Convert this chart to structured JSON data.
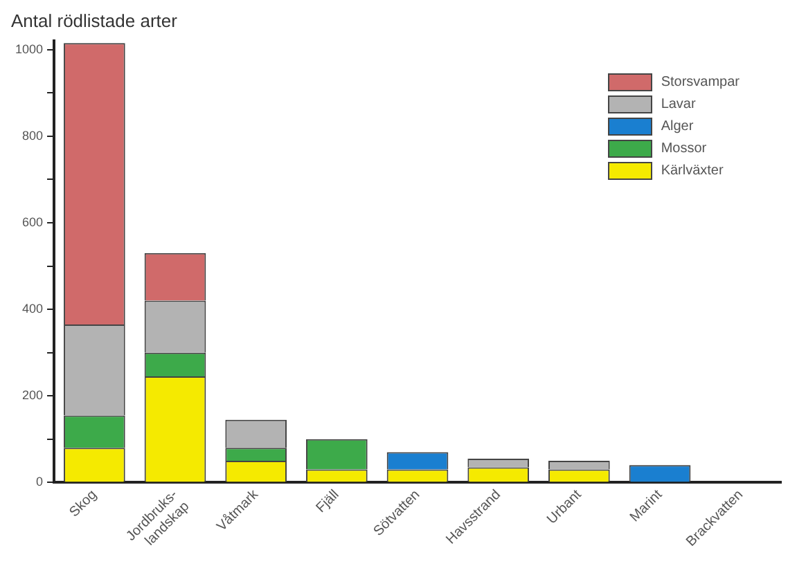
{
  "chart_data": {
    "type": "bar",
    "title": "Antal rödlistade arter",
    "stacked": true,
    "categories": [
      "Skog",
      "Jordbruks-landskap",
      "Våtmark",
      "Fjäll",
      "Sötvatten",
      "Havsstrand",
      "Urbant",
      "Marint",
      "Brackvatten"
    ],
    "series": [
      {
        "name": "Kärlväxter",
        "color": "#f5ea00",
        "values": [
          80,
          245,
          50,
          30,
          30,
          35,
          30,
          null,
          null
        ]
      },
      {
        "name": "Mossor",
        "color": "#3daa4a",
        "values": [
          75,
          55,
          30,
          70,
          null,
          null,
          null,
          null,
          null
        ]
      },
      {
        "name": "Alger",
        "color": "#1a7fd0",
        "values": [
          null,
          null,
          null,
          null,
          40,
          null,
          null,
          40,
          null
        ]
      },
      {
        "name": "Lavar",
        "color": "#b3b3b3",
        "values": [
          210,
          120,
          65,
          null,
          null,
          20,
          20,
          null,
          null
        ]
      },
      {
        "name": "Storsvampar",
        "color": "#d06a6a",
        "values": [
          650,
          110,
          null,
          null,
          null,
          null,
          null,
          null,
          null
        ]
      }
    ],
    "ylim": [
      0,
      1020
    ],
    "yticks": [
      0,
      {
        "value": 100,
        "label": null
      },
      200,
      {
        "value": 300,
        "label": null
      },
      400,
      {
        "value": 500,
        "label": null
      },
      600,
      {
        "value": 700,
        "label": null
      },
      800,
      {
        "value": 900,
        "label": null
      },
      1000
    ],
    "grid": false,
    "legend": "top right"
  }
}
